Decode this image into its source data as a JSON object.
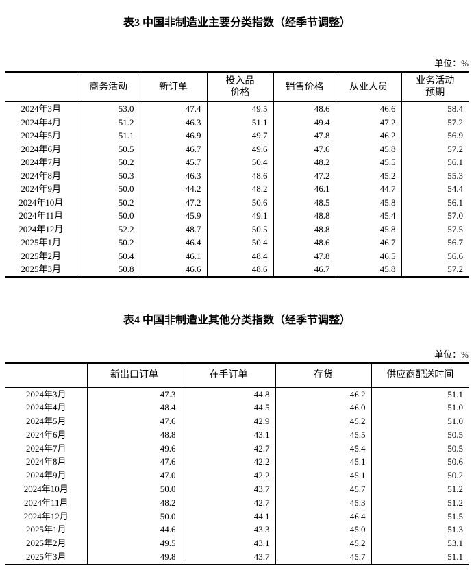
{
  "text_color": "#000000",
  "background_color": "#ffffff",
  "tables": [
    {
      "title": "表3 中国非制造业主要分类指数（经季节调整）",
      "unit": "单位：%",
      "columns": [
        "",
        "商务活动",
        "新订单",
        "投入品\n价格",
        "销售价格",
        "从业人员",
        "业务活动\n预期"
      ],
      "rows": [
        {
          "label": "2024年3月",
          "values": [
            "53.0",
            "47.4",
            "49.5",
            "48.6",
            "46.6",
            "58.4"
          ]
        },
        {
          "label": "2024年4月",
          "values": [
            "51.2",
            "46.3",
            "51.1",
            "49.4",
            "47.2",
            "57.2"
          ]
        },
        {
          "label": "2024年5月",
          "values": [
            "51.1",
            "46.9",
            "49.7",
            "47.8",
            "46.2",
            "56.9"
          ]
        },
        {
          "label": "2024年6月",
          "values": [
            "50.5",
            "46.7",
            "49.6",
            "47.6",
            "45.8",
            "57.2"
          ]
        },
        {
          "label": "2024年7月",
          "values": [
            "50.2",
            "45.7",
            "50.4",
            "48.2",
            "45.5",
            "56.1"
          ]
        },
        {
          "label": "2024年8月",
          "values": [
            "50.3",
            "46.3",
            "48.6",
            "47.2",
            "45.2",
            "55.3"
          ]
        },
        {
          "label": "2024年9月",
          "values": [
            "50.0",
            "44.2",
            "48.2",
            "46.1",
            "44.7",
            "54.4"
          ]
        },
        {
          "label": "2024年10月",
          "values": [
            "50.2",
            "47.2",
            "50.6",
            "48.5",
            "45.8",
            "56.1"
          ]
        },
        {
          "label": "2024年11月",
          "values": [
            "50.0",
            "45.9",
            "49.1",
            "48.8",
            "45.4",
            "57.0"
          ]
        },
        {
          "label": "2024年12月",
          "values": [
            "52.2",
            "48.7",
            "50.5",
            "48.8",
            "45.8",
            "57.5"
          ]
        },
        {
          "label": "2025年1月",
          "values": [
            "50.2",
            "46.4",
            "50.4",
            "48.6",
            "46.7",
            "56.7"
          ]
        },
        {
          "label": "2025年2月",
          "values": [
            "50.4",
            "46.1",
            "48.4",
            "47.8",
            "46.5",
            "56.6"
          ]
        },
        {
          "label": "2025年3月",
          "values": [
            "50.8",
            "46.6",
            "48.6",
            "46.7",
            "45.8",
            "57.2"
          ]
        }
      ]
    },
    {
      "title": "表4 中国非制造业其他分类指数（经季节调整）",
      "unit": "单位：%",
      "columns": [
        "",
        "新出口订单",
        "在手订单",
        "存货",
        "供应商配送时间"
      ],
      "rows": [
        {
          "label": "2024年3月",
          "values": [
            "47.3",
            "44.8",
            "46.2",
            "51.1"
          ]
        },
        {
          "label": "2024年4月",
          "values": [
            "48.4",
            "44.5",
            "46.0",
            "51.0"
          ]
        },
        {
          "label": "2024年5月",
          "values": [
            "47.6",
            "42.9",
            "45.2",
            "51.0"
          ]
        },
        {
          "label": "2024年6月",
          "values": [
            "48.8",
            "43.1",
            "45.5",
            "50.5"
          ]
        },
        {
          "label": "2024年7月",
          "values": [
            "49.6",
            "42.7",
            "45.4",
            "50.5"
          ]
        },
        {
          "label": "2024年8月",
          "values": [
            "47.6",
            "42.2",
            "45.1",
            "50.6"
          ]
        },
        {
          "label": "2024年9月",
          "values": [
            "47.0",
            "42.2",
            "45.1",
            "50.2"
          ]
        },
        {
          "label": "2024年10月",
          "values": [
            "50.0",
            "43.7",
            "45.7",
            "51.2"
          ]
        },
        {
          "label": "2024年11月",
          "values": [
            "48.2",
            "42.7",
            "45.3",
            "51.2"
          ]
        },
        {
          "label": "2024年12月",
          "values": [
            "50.0",
            "44.1",
            "46.4",
            "51.5"
          ]
        },
        {
          "label": "2025年1月",
          "values": [
            "44.6",
            "43.3",
            "45.0",
            "51.3"
          ]
        },
        {
          "label": "2025年2月",
          "values": [
            "49.5",
            "43.1",
            "45.2",
            "53.1"
          ]
        },
        {
          "label": "2025年3月",
          "values": [
            "49.8",
            "43.7",
            "45.7",
            "51.1"
          ]
        }
      ]
    }
  ]
}
